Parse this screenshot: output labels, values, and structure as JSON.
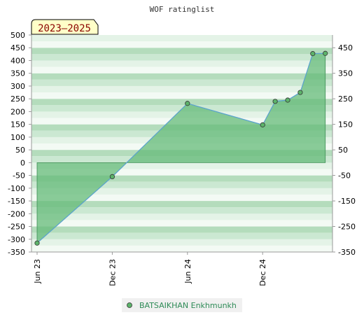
{
  "chart_data": {
    "type": "area",
    "title": "WOF ratinglist",
    "badge": "2023–2025",
    "ylim": [
      -350,
      500
    ],
    "yticks_left": [
      "500",
      "450",
      "400",
      "350",
      "300",
      "250",
      "200",
      "150",
      "100",
      "50",
      "0",
      "-50",
      "-100",
      "-150",
      "-200",
      "-250",
      "-300",
      "-350"
    ],
    "yticks_right": [
      "450",
      "350",
      "250",
      "150",
      "50",
      "-50",
      "-150",
      "-250",
      "-350"
    ],
    "xticks": [
      "Jun 23",
      "Dec 23",
      "Jun 24",
      "Dec 24"
    ],
    "series": [
      {
        "name": "BATSAIKHAN Enkhmunkh",
        "x": [
          "2023-06",
          "2023-12",
          "2024-06",
          "2024-12",
          "2025-01",
          "2025-02",
          "2025-03",
          "2025-04",
          "2025-05"
        ],
        "values": [
          -315,
          -55,
          232,
          148,
          240,
          245,
          275,
          427,
          428
        ]
      }
    ],
    "grid": true,
    "legend": "bottom-center",
    "colors": {
      "line": "#5ba3d0",
      "fill": "#66bb7a",
      "marker": "#5cb36a",
      "band_dark": "#b4dcbc",
      "band_light": "#e4f3e7",
      "legend_text": "#2e8b57"
    }
  }
}
